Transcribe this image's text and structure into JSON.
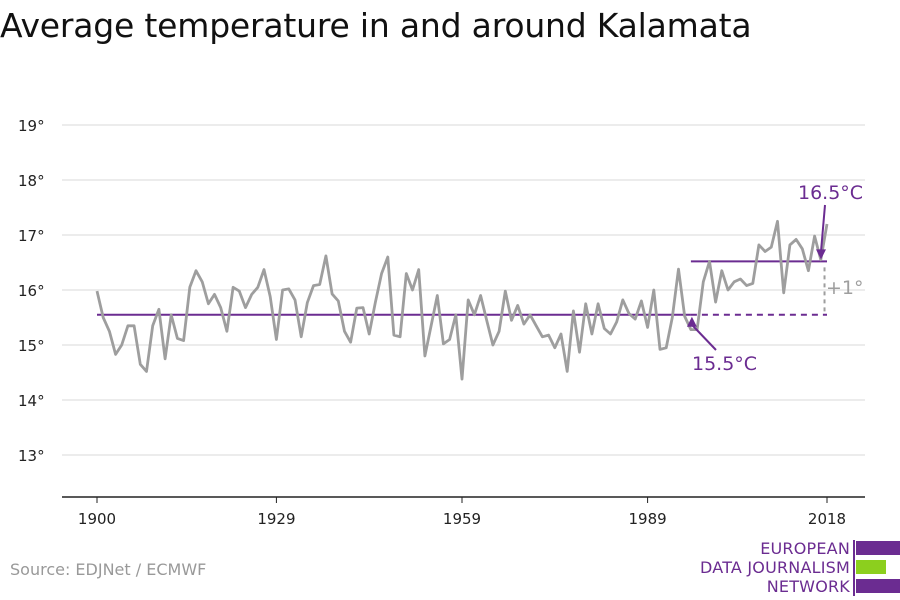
{
  "title": "Average temperature in and around Kalamata",
  "source": "Source: EDJNet / ECMWF",
  "logo": {
    "lines": [
      "EUROPEAN",
      "DATA JOURNALISM",
      "NETWORK"
    ],
    "colors": [
      "#6b2c91",
      "#8ccf1e",
      "#6b2c91"
    ]
  },
  "colors": {
    "series": "#9e9e9e",
    "accent": "#6b2c91",
    "grid": "#d9d9d9",
    "axis": "#222222"
  },
  "chart_data": {
    "type": "line",
    "title": "Average temperature in and around Kalamata",
    "xlim": [
      1900,
      2018
    ],
    "ylim": [
      13,
      19
    ],
    "xticks": [
      1900,
      1929,
      1959,
      1989,
      2018
    ],
    "yticks": [
      13,
      14,
      15,
      16,
      17,
      18,
      19
    ],
    "ytick_labels": [
      "13°",
      "14°",
      "15°",
      "16°",
      "17°",
      "18°",
      "19°"
    ],
    "grid": true,
    "series": [
      {
        "x": [
          1900,
          1901,
          1902,
          1903,
          1904,
          1905,
          1906,
          1907,
          1908,
          1909,
          1910,
          1911,
          1912,
          1913,
          1914,
          1915,
          1916,
          1917,
          1918,
          1919,
          1920,
          1921,
          1922,
          1923,
          1924,
          1925,
          1926,
          1927,
          1928,
          1929,
          1930,
          1931,
          1932,
          1933,
          1934,
          1935,
          1936,
          1937,
          1938,
          1939,
          1940,
          1941,
          1942,
          1943,
          1944,
          1945,
          1946,
          1947,
          1948,
          1949,
          1950,
          1951,
          1952,
          1953,
          1954,
          1955,
          1956,
          1957,
          1958,
          1959,
          1960,
          1961,
          1962,
          1963,
          1964,
          1965,
          1966,
          1967,
          1968,
          1969,
          1970,
          1971,
          1972,
          1973,
          1974,
          1975,
          1976,
          1977,
          1978,
          1979,
          1980,
          1981,
          1982,
          1983,
          1984,
          1985,
          1986,
          1987,
          1988,
          1989,
          1990,
          1991,
          1992,
          1993,
          1994,
          1995,
          1996,
          1997,
          1998,
          1999,
          2000,
          2001,
          2002,
          2003,
          2004,
          2005,
          2006,
          2007,
          2008,
          2009,
          2010,
          2011,
          2012,
          2013,
          2014,
          2015,
          2016,
          2017,
          2018
        ],
        "values": [
          15.98,
          15.5,
          15.25,
          14.83,
          15.0,
          15.35,
          15.35,
          14.65,
          14.52,
          15.35,
          15.65,
          14.75,
          15.55,
          15.12,
          15.08,
          16.05,
          16.35,
          16.15,
          15.75,
          15.92,
          15.68,
          15.25,
          16.05,
          15.98,
          15.68,
          15.92,
          16.05,
          16.37,
          15.88,
          15.1,
          16.0,
          16.02,
          15.82,
          15.15,
          15.77,
          16.08,
          16.1,
          16.62,
          15.93,
          15.8,
          15.25,
          15.05,
          15.67,
          15.68,
          15.2,
          15.78,
          16.3,
          16.6,
          15.18,
          15.15,
          16.3,
          16.0,
          16.37,
          14.8,
          15.35,
          15.9,
          15.02,
          15.1,
          15.55,
          14.38,
          15.82,
          15.55,
          15.9,
          15.45,
          15.0,
          15.25,
          15.98,
          15.45,
          15.72,
          15.38,
          15.55,
          15.35,
          15.15,
          15.18,
          14.95,
          15.2,
          14.52,
          15.62,
          14.87,
          15.75,
          15.2,
          15.75,
          15.3,
          15.2,
          15.42,
          15.82,
          15.57,
          15.47,
          15.8,
          15.32,
          16.0,
          14.92,
          14.95,
          15.5,
          16.38,
          15.52,
          15.28,
          15.28,
          16.15,
          16.52,
          15.78,
          16.35,
          16.0,
          16.15,
          16.2,
          16.08,
          16.12,
          16.82,
          16.7,
          16.78,
          17.25,
          15.95,
          16.82,
          16.92,
          16.75,
          16.35,
          16.98,
          16.55,
          17.2
        ]
      }
    ],
    "reference_lines": [
      {
        "label": "15.5°C",
        "value": 15.55,
        "from": 1900,
        "to": 1996
      },
      {
        "label": "15.5°C",
        "value": 15.55,
        "from": 1996,
        "to": 2018,
        "style": "dashed"
      },
      {
        "label": "16.5°C",
        "value": 16.52,
        "from": 1996,
        "to": 2018
      }
    ],
    "annotations": {
      "low_label": "15.5°C",
      "high_label": "16.5°C",
      "diff_label": "+1°"
    }
  }
}
